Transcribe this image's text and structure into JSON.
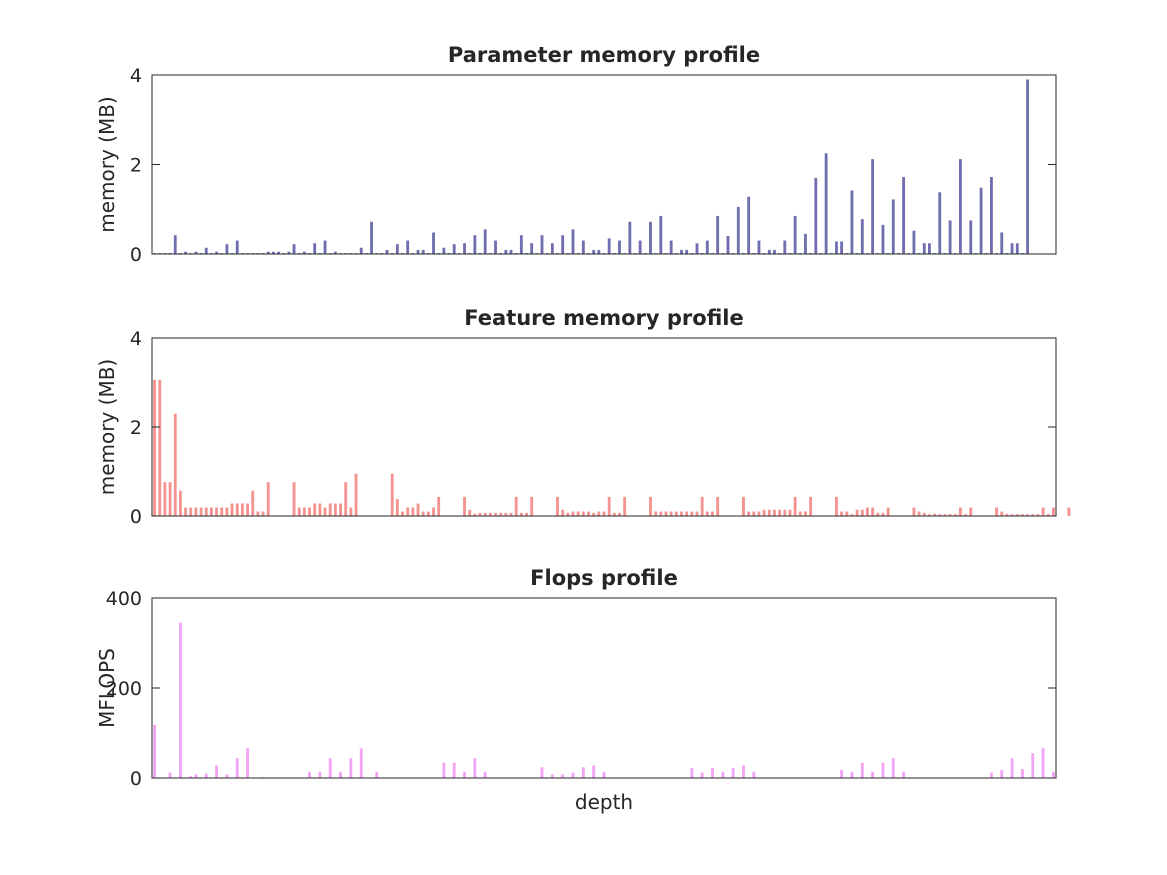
{
  "chart_data": [
    {
      "type": "bar",
      "title": "Parameter memory profile",
      "xlabel": "",
      "ylabel": "memory (MB)",
      "ylim": [
        0,
        4
      ],
      "yticks": [
        "0",
        "2",
        "4"
      ],
      "color": "#6e6eb0",
      "xlim": [
        0,
        175
      ],
      "values": [
        0.02,
        0.02,
        0.02,
        0.02,
        0.42,
        0.02,
        0.05,
        0.02,
        0.05,
        0.02,
        0.14,
        0.02,
        0.05,
        0.02,
        0.22,
        0.02,
        0.3,
        0.02,
        0.02,
        0.02,
        0.02,
        0.02,
        0.05,
        0.05,
        0.05,
        0.02,
        0.05,
        0.22,
        0.02,
        0.05,
        0.02,
        0.24,
        0.02,
        0.3,
        0.02,
        0.05,
        0.02,
        0.02,
        0.02,
        0.02,
        0.14,
        0.02,
        0.72,
        0.02,
        0.02,
        0.09,
        0.02,
        0.22,
        0.02,
        0.3,
        0.02,
        0.09,
        0.09,
        0.02,
        0.48,
        0.02,
        0.14,
        0.02,
        0.22,
        0.02,
        0.24,
        0.02,
        0.42,
        0.02,
        0.55,
        0.02,
        0.3,
        0.02,
        0.09,
        0.09,
        0.02,
        0.42,
        0.02,
        0.24,
        0.02,
        0.42,
        0.02,
        0.24,
        0.02,
        0.42,
        0.02,
        0.55,
        0.02,
        0.3,
        0.02,
        0.09,
        0.09,
        0.02,
        0.35,
        0.02,
        0.3,
        0.02,
        0.72,
        0.02,
        0.3,
        0.02,
        0.72,
        0.02,
        0.85,
        0.02,
        0.3,
        0.02,
        0.09,
        0.09,
        0.02,
        0.24,
        0.02,
        0.3,
        0.02,
        0.85,
        0.02,
        0.4,
        0.02,
        1.05,
        0.02,
        1.28,
        0.02,
        0.3,
        0.02,
        0.09,
        0.09,
        0.02,
        0.3,
        0.02,
        0.85,
        0.02,
        0.45,
        0.02,
        1.7,
        0.02,
        2.25,
        0.02,
        0.28,
        0.28,
        0.02,
        1.42,
        0.02,
        0.78,
        0.02,
        2.12,
        0.02,
        0.65,
        0.02,
        1.22,
        0.02,
        1.72,
        0.02,
        0.52,
        0.02,
        0.24,
        0.24,
        0.02,
        1.38,
        0.02,
        0.75,
        0.02,
        2.12,
        0.02,
        0.75,
        0.02,
        1.48,
        0.02,
        1.72,
        0.02,
        0.48,
        0.02,
        0.24,
        0.24,
        0.02,
        3.9,
        0.0,
        0.0,
        0.0,
        0.0,
        0.0,
        0.0,
        0.0,
        0.0,
        0.0,
        0.0,
        0.0,
        0.0,
        0.0,
        0.0,
        0.0,
        0.0,
        0.0,
        0.0,
        0.0,
        0.0,
        0.0
      ]
    },
    {
      "type": "bar",
      "title": "Feature memory profile",
      "xlabel": "",
      "ylabel": "memory (MB)",
      "ylim": [
        0,
        4
      ],
      "yticks": [
        "0",
        "2",
        "4"
      ],
      "color": "#f4938f",
      "xlim": [
        0,
        175
      ],
      "values": [
        3.06,
        3.06,
        0.76,
        0.76,
        2.3,
        0.57,
        0.19,
        0.19,
        0.19,
        0.19,
        0.19,
        0.19,
        0.19,
        0.19,
        0.19,
        0.28,
        0.28,
        0.28,
        0.28,
        0.57,
        0.1,
        0.1,
        0.76,
        0.0,
        0.0,
        0.0,
        0.0,
        0.76,
        0.19,
        0.19,
        0.19,
        0.28,
        0.28,
        0.19,
        0.28,
        0.28,
        0.28,
        0.76,
        0.19,
        0.95,
        0.0,
        0.0,
        0.0,
        0.0,
        0.0,
        0.0,
        0.95,
        0.38,
        0.1,
        0.19,
        0.19,
        0.28,
        0.1,
        0.1,
        0.19,
        0.43,
        0.0,
        0.0,
        0.0,
        0.0,
        0.43,
        0.14,
        0.05,
        0.07,
        0.07,
        0.07,
        0.07,
        0.07,
        0.07,
        0.07,
        0.43,
        0.07,
        0.07,
        0.43,
        0.0,
        0.0,
        0.0,
        0.0,
        0.43,
        0.14,
        0.07,
        0.1,
        0.1,
        0.1,
        0.1,
        0.07,
        0.1,
        0.1,
        0.43,
        0.07,
        0.07,
        0.43,
        0.0,
        0.0,
        0.0,
        0.0,
        0.43,
        0.1,
        0.1,
        0.1,
        0.1,
        0.1,
        0.1,
        0.1,
        0.1,
        0.1,
        0.43,
        0.1,
        0.1,
        0.43,
        0.0,
        0.0,
        0.0,
        0.0,
        0.43,
        0.1,
        0.1,
        0.1,
        0.14,
        0.14,
        0.14,
        0.14,
        0.14,
        0.14,
        0.43,
        0.1,
        0.1,
        0.43,
        0.0,
        0.0,
        0.0,
        0.0,
        0.43,
        0.1,
        0.1,
        0.04,
        0.14,
        0.14,
        0.19,
        0.19,
        0.07,
        0.07,
        0.19,
        0.0,
        0.0,
        0.0,
        0.0,
        0.19,
        0.1,
        0.07,
        0.04,
        0.05,
        0.04,
        0.04,
        0.04,
        0.04,
        0.19,
        0.04,
        0.19,
        0.0,
        0.0,
        0.0,
        0.0,
        0.19,
        0.1,
        0.05,
        0.04,
        0.04,
        0.04,
        0.04,
        0.04,
        0.04,
        0.19,
        0.04,
        0.19,
        0.0,
        0.0,
        0.19,
        0.0,
        0.0,
        0.0,
        0.0,
        0.0,
        0.0,
        0.0,
        0.0,
        0.0,
        0.0,
        0.0,
        0.0,
        0.0,
        0.0,
        0.0,
        0.0,
        0.0,
        0.0,
        0.0,
        0.0
      ]
    },
    {
      "type": "bar",
      "title": "Flops profile",
      "xlabel": "depth",
      "ylabel": "MFLOPS",
      "ylim": [
        0,
        400
      ],
      "yticks": [
        "0",
        "200",
        "400"
      ],
      "color": "#f3a3f3",
      "xlim": [
        0,
        175
      ],
      "values": [
        118,
        0,
        0,
        12,
        0,
        345,
        0,
        4,
        8,
        0,
        10,
        0,
        28,
        0,
        8,
        0,
        44,
        0,
        66,
        0,
        0,
        2,
        0,
        0,
        0,
        0,
        0,
        0,
        0,
        0,
        14,
        0,
        14,
        0,
        44,
        0,
        14,
        0,
        44,
        0,
        66,
        0,
        0,
        14,
        0,
        0,
        0,
        0,
        0,
        0,
        0,
        0,
        0,
        0,
        0,
        0,
        34,
        0,
        34,
        0,
        14,
        0,
        44,
        0,
        14,
        0,
        0,
        0,
        0,
        0,
        0,
        0,
        0,
        0,
        0,
        24,
        0,
        8,
        0,
        8,
        0,
        12,
        0,
        24,
        0,
        28,
        0,
        14,
        0,
        0,
        0,
        0,
        0,
        0,
        0,
        0,
        0,
        0,
        0,
        0,
        0,
        0,
        0,
        0,
        22,
        0,
        12,
        0,
        22,
        0,
        14,
        0,
        22,
        0,
        28,
        0,
        14,
        0,
        0,
        0,
        0,
        0,
        0,
        0,
        0,
        0,
        0,
        0,
        0,
        0,
        0,
        0,
        0,
        18,
        0,
        14,
        0,
        34,
        0,
        14,
        0,
        34,
        0,
        44,
        0,
        14,
        0,
        0,
        0,
        0,
        0,
        0,
        0,
        0,
        0,
        0,
        0,
        0,
        0,
        0,
        0,
        0,
        12,
        0,
        18,
        0,
        44,
        0,
        20,
        0,
        55,
        0,
        66,
        0,
        14,
        0,
        0,
        0,
        0,
        0,
        0,
        0,
        0,
        0,
        0,
        0,
        0,
        0,
        0,
        0,
        0,
        0,
        0,
        0,
        0,
        0
      ]
    }
  ]
}
